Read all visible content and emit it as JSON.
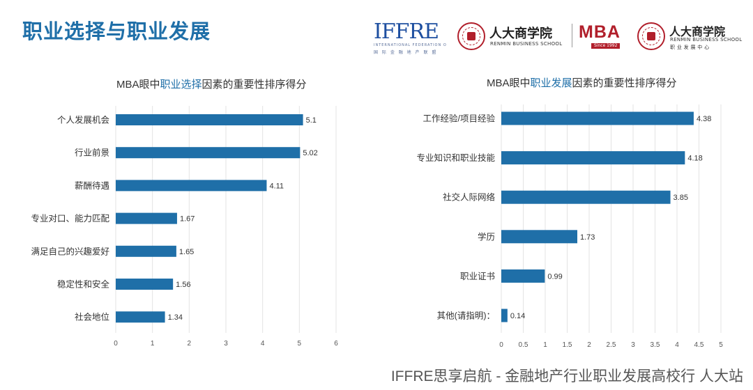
{
  "page": {
    "title": "职业选择与职业发展",
    "footer": "IFFRE思享启航 - 金融地产行业职业发展高校行 人大站"
  },
  "logos": {
    "iffre_text": "IFFRE",
    "iffre_sub_en": "INTERNATIONAL FEDERATION OF FINANCE & REAL ESTATE",
    "iffre_sub_cn": "国 际 金 融 地 产 联 盟",
    "rbs_name": "人大商学院",
    "rbs_en": "RENMIN BUSINESS SCHOOL",
    "mba": "MBA",
    "since": "Since 1992",
    "career_name": "人大商学院",
    "career_en": "RENMIN BUSINESS SCHOOL",
    "career_sub": "职 业 发 展 中 心"
  },
  "chart_data": [
    {
      "type": "bar",
      "orientation": "horizontal",
      "title_parts": [
        "MBA眼中",
        "职业选择",
        "因素的重要性排序得分"
      ],
      "categories": [
        "个人发展机会",
        "行业前景",
        "薪酬待遇",
        "专业对口、能力匹配",
        "满足自己的兴趣爱好",
        "稳定性和安全",
        "社会地位"
      ],
      "values": [
        5.1,
        5.02,
        4.11,
        1.67,
        1.65,
        1.56,
        1.34
      ],
      "value_labels": [
        "5.1",
        "5.02",
        "4.11",
        "1.67",
        "1.65",
        "1.56",
        "1.34"
      ],
      "xlim": [
        0,
        6
      ],
      "xticks": [
        0,
        1,
        2,
        3,
        4,
        5,
        6
      ],
      "xtick_labels": [
        "0",
        "1",
        "2",
        "3",
        "4",
        "5",
        "6"
      ],
      "grid": true,
      "color": "#1f6fa8"
    },
    {
      "type": "bar",
      "orientation": "horizontal",
      "title_parts": [
        "MBA眼中",
        "职业发展",
        "因素的重要性排序得分"
      ],
      "categories": [
        "工作经验/项目经验",
        "专业知识和职业技能",
        "社交人际网络",
        "学历",
        "职业证书",
        "其他(请指明)："
      ],
      "values": [
        4.38,
        4.18,
        3.85,
        1.73,
        0.99,
        0.14
      ],
      "value_labels": [
        "4.38",
        "4.18",
        "3.85",
        "1.73",
        "0.99",
        "0.14"
      ],
      "xlim": [
        0,
        5
      ],
      "xticks": [
        0,
        0.5,
        1,
        1.5,
        2,
        2.5,
        3,
        3.5,
        4,
        4.5,
        5
      ],
      "xtick_labels": [
        "0",
        "0.5",
        "1",
        "1.5",
        "2",
        "2.5",
        "3",
        "3.5",
        "4",
        "4.5",
        "5"
      ],
      "grid": true,
      "color": "#1f6fa8"
    }
  ]
}
